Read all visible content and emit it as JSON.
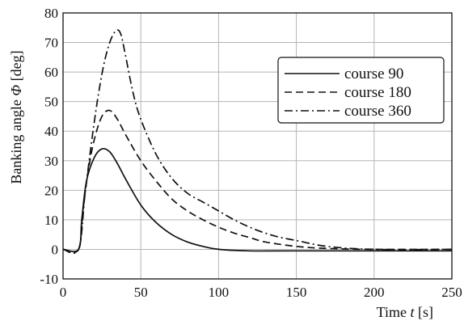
{
  "chart_data": {
    "type": "line",
    "xlabel": {
      "prefix": "Time",
      "symbol": "t",
      "unit": "[s]"
    },
    "ylabel": {
      "prefix": "Banking angle",
      "symbol": "Φ",
      "unit": "[deg]"
    },
    "xlim": [
      0,
      250
    ],
    "ylim": [
      -10,
      80
    ],
    "xticks": [
      0,
      50,
      100,
      150,
      200,
      250
    ],
    "yticks": [
      -10,
      0,
      10,
      20,
      30,
      40,
      50,
      60,
      70,
      80
    ],
    "xtick_labels": [
      "0",
      "50",
      "100",
      "150",
      "200",
      "250"
    ],
    "ytick_labels": [
      "-10",
      "0",
      "10",
      "20",
      "30",
      "40",
      "50",
      "60",
      "70",
      "80"
    ],
    "grid": true,
    "legend_position": "upper-right",
    "series": [
      {
        "name": "course 90",
        "style": "solid",
        "x": [
          0,
          10,
          12,
          15,
          20,
          25,
          30,
          35,
          40,
          50,
          60,
          70,
          80,
          90,
          100,
          120,
          150,
          250
        ],
        "y": [
          0,
          0,
          10,
          23,
          31,
          34,
          33,
          29,
          24,
          15,
          9,
          5,
          2.5,
          1,
          0,
          -0.5,
          -0.5,
          -0.5
        ]
      },
      {
        "name": "course 180",
        "style": "dashed",
        "x": [
          0,
          10,
          13,
          16,
          20,
          25,
          30,
          35,
          40,
          50,
          60,
          70,
          80,
          90,
          100,
          110,
          120,
          130,
          150,
          170,
          200,
          250
        ],
        "y": [
          0,
          0,
          14,
          26,
          37,
          45,
          47,
          44,
          39,
          30,
          23,
          17,
          13,
          10,
          7.5,
          5.5,
          4,
          2.5,
          1,
          0.3,
          0,
          0
        ]
      },
      {
        "name": "course 360",
        "style": "dashdot",
        "x": [
          0,
          10,
          14,
          18,
          22,
          26,
          30,
          34,
          37,
          40,
          45,
          50,
          60,
          70,
          80,
          90,
          100,
          110,
          120,
          130,
          140,
          150,
          170,
          200,
          250
        ],
        "y": [
          0,
          0,
          18,
          35,
          50,
          62,
          70,
          74,
          73,
          66,
          53,
          44,
          32,
          24,
          19,
          16,
          13,
          10,
          7.5,
          5.5,
          4,
          3,
          1,
          0,
          0
        ]
      }
    ]
  }
}
